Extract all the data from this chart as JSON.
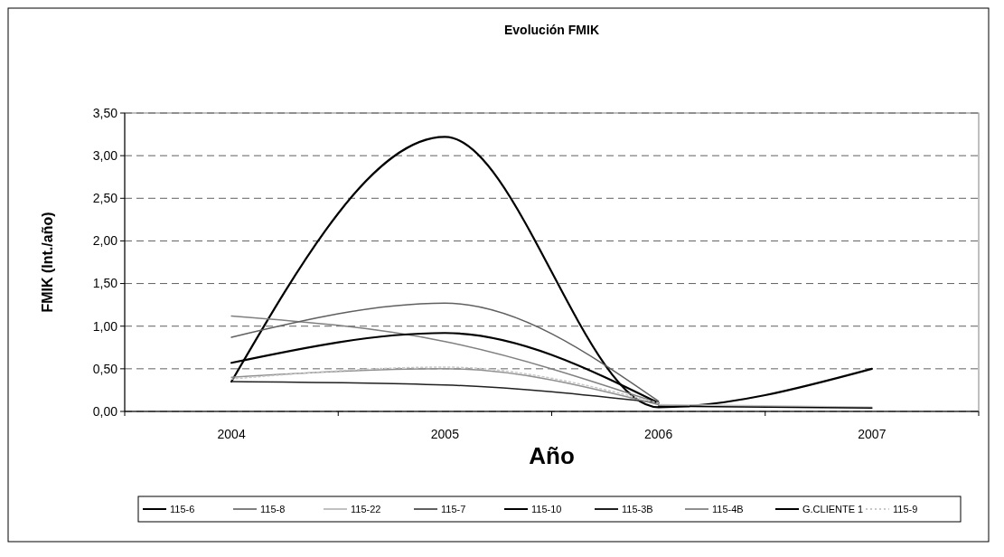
{
  "chart_data": {
    "type": "line",
    "title": "Evolución FMIK",
    "xlabel": "Año",
    "ylabel": "FMIK (Int./año)",
    "categories": [
      "2004",
      "2005",
      "2006",
      "2007"
    ],
    "ylim": [
      0,
      3.5
    ],
    "yticks": [
      {
        "value": 0,
        "label": "0,00"
      },
      {
        "value": 0.5,
        "label": "0,50"
      },
      {
        "value": 1,
        "label": "1,00"
      },
      {
        "value": 1.5,
        "label": "1,50"
      },
      {
        "value": 2,
        "label": "2,00"
      },
      {
        "value": 2.5,
        "label": "2,50"
      },
      {
        "value": 3,
        "label": "3,00"
      },
      {
        "value": 3.5,
        "label": "3,50"
      }
    ],
    "grid": "y",
    "legend": "bottom",
    "marker": "none",
    "series": [
      {
        "name": "115-6",
        "color": "#000000",
        "values": [
          0.35,
          3.22,
          0.05,
          0.5
        ]
      },
      {
        "name": "115-8",
        "color": "#808080",
        "values": [
          1.12,
          0.82,
          0.1,
          null
        ]
      },
      {
        "name": "115-22",
        "color": "#c0c0c0",
        "values": [
          null,
          null,
          0.08,
          0.05
        ]
      },
      {
        "name": "115-7",
        "color": "#606060",
        "values": [
          0.87,
          1.27,
          0.12,
          null
        ]
      },
      {
        "name": "115-10",
        "color": "#000000",
        "values": [
          0.57,
          0.92,
          0.1,
          null
        ]
      },
      {
        "name": "115-3B",
        "color": "#202020",
        "values": [
          0.35,
          0.31,
          0.1,
          null
        ]
      },
      {
        "name": "115-4B",
        "color": "#909090",
        "values": [
          0.4,
          0.5,
          0.08,
          null
        ]
      },
      {
        "name": "G.CLIENTE 1",
        "color": "#000000",
        "values": [
          null,
          null,
          0.06,
          0.04
        ]
      },
      {
        "name": "115-9",
        "color": "#c8c8c8",
        "line_style": "dotted",
        "values": [
          0.38,
          0.52,
          0.1,
          null
        ]
      }
    ]
  }
}
